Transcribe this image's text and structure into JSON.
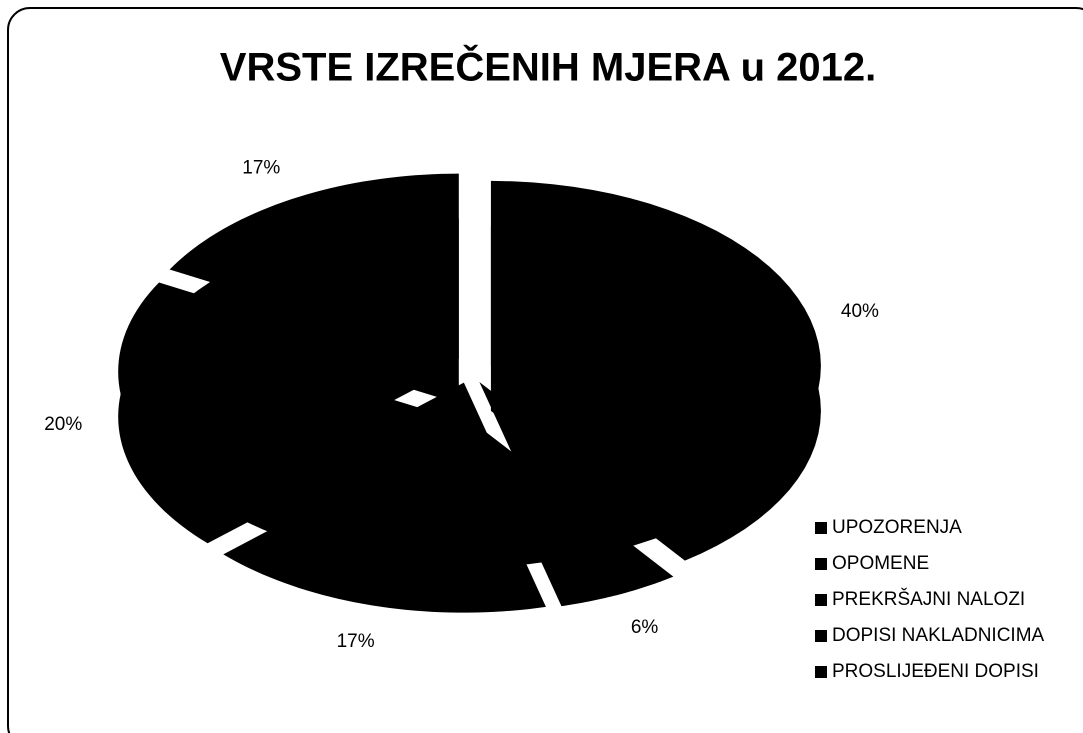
{
  "chart_data": {
    "type": "pie",
    "title": "VRSTE IZREČENIH MJERA u 2012.",
    "categories": [
      "UPOZORENJA",
      "OPOMENE",
      "PREKRŠAJNI NALOZI",
      "DOPISI NAKLADNICIMA",
      "PROSLIJEĐENI DOPISI"
    ],
    "values": [
      40,
      6,
      17,
      20,
      17
    ],
    "value_labels": [
      "40%",
      "6%",
      "17%",
      "20%",
      "17%"
    ],
    "colors": [
      "#000000",
      "#000000",
      "#000000",
      "#000000",
      "#000000"
    ],
    "legend": "right"
  }
}
